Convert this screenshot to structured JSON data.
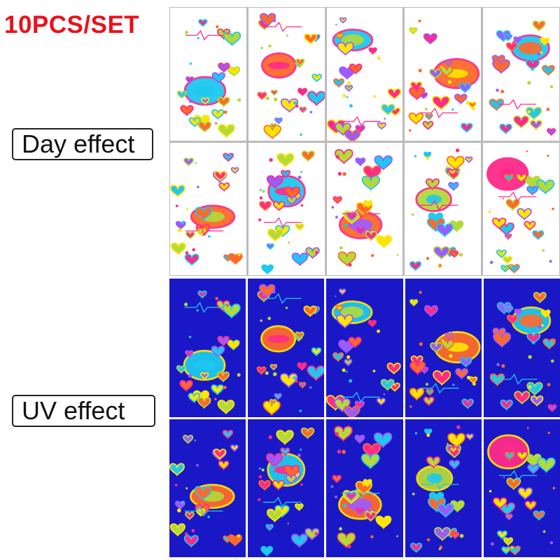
{
  "header": {
    "title": "10PCS/SET"
  },
  "labels": {
    "day": "Day effect",
    "uv": "UV effect"
  },
  "colors": {
    "title_red": "#e8121b",
    "day_background": "#ffffff",
    "uv_background": "#1a18c6",
    "palette": [
      "#ff2a8a",
      "#ffe600",
      "#1ec8f0",
      "#b4d93a",
      "#9b5cff",
      "#ff6a2a"
    ]
  },
  "sheets": [
    {
      "id": 1,
      "motif": "envelope-cupids"
    },
    {
      "id": 2,
      "motif": "fairy-lips-kiss"
    },
    {
      "id": 3,
      "motif": "flower-fairy"
    },
    {
      "id": 4,
      "motif": "lips-wings-hearts"
    },
    {
      "id": 5,
      "motif": "winged-hearts"
    },
    {
      "id": 6,
      "motif": "lips-love-kiss"
    },
    {
      "id": 7,
      "motif": "cupids-arrow-kiss"
    },
    {
      "id": 8,
      "motif": "rose"
    },
    {
      "id": 9,
      "motif": "angel-love"
    },
    {
      "id": 10,
      "motif": "lips-envelope"
    }
  ]
}
